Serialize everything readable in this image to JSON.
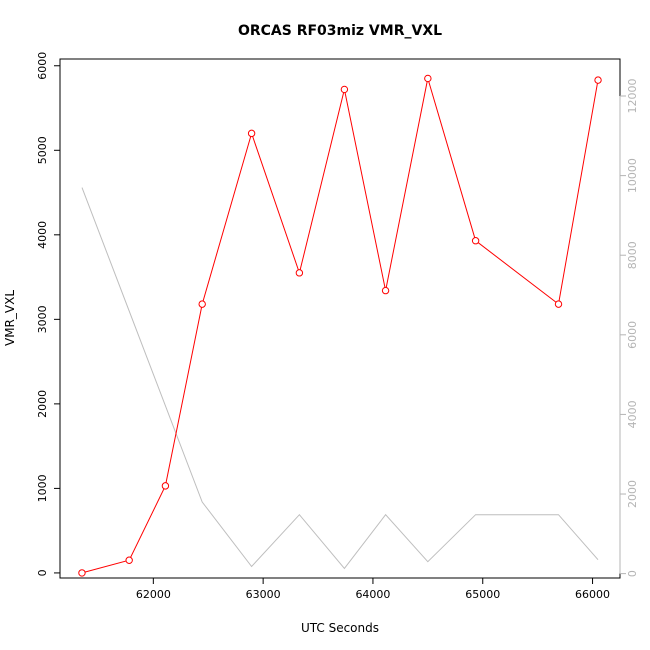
{
  "chart_data": {
    "type": "line",
    "title": "ORCAS RF03miz VMR_VXL",
    "xlabel": "UTC Seconds",
    "ylabel": "VMR_VXL",
    "xlim": [
      61150,
      66250
    ],
    "ylim": [
      -60,
      6080
    ],
    "y2lim": [
      -110,
      12930
    ],
    "x_ticks": [
      "62000",
      "63000",
      "64000",
      "65000",
      "66000"
    ],
    "y_ticks": [
      "0",
      "1000",
      "2000",
      "3000",
      "4000",
      "5000",
      "6000"
    ],
    "y2_ticks": [
      "0",
      "2000",
      "4000",
      "6000",
      "8000",
      "10000",
      "12000"
    ],
    "grid": false,
    "series": [
      {
        "axis": "left",
        "color": "#ff0000",
        "markers": true,
        "x": [
          61350,
          61780,
          62110,
          62445,
          62895,
          63330,
          63740,
          64115,
          64500,
          64935,
          65690,
          66050
        ],
        "y": [
          0,
          150,
          1030,
          3180,
          5200,
          3550,
          5720,
          3340,
          5850,
          3930,
          3180,
          5830
        ]
      },
      {
        "axis": "right",
        "color": "#bebebe",
        "markers": false,
        "x": [
          61350,
          62445,
          62895,
          63330,
          63740,
          64115,
          64500,
          64935,
          65690,
          66050
        ],
        "y": [
          9700,
          1800,
          180,
          1480,
          130,
          1480,
          300,
          1480,
          1480,
          350
        ]
      }
    ]
  }
}
